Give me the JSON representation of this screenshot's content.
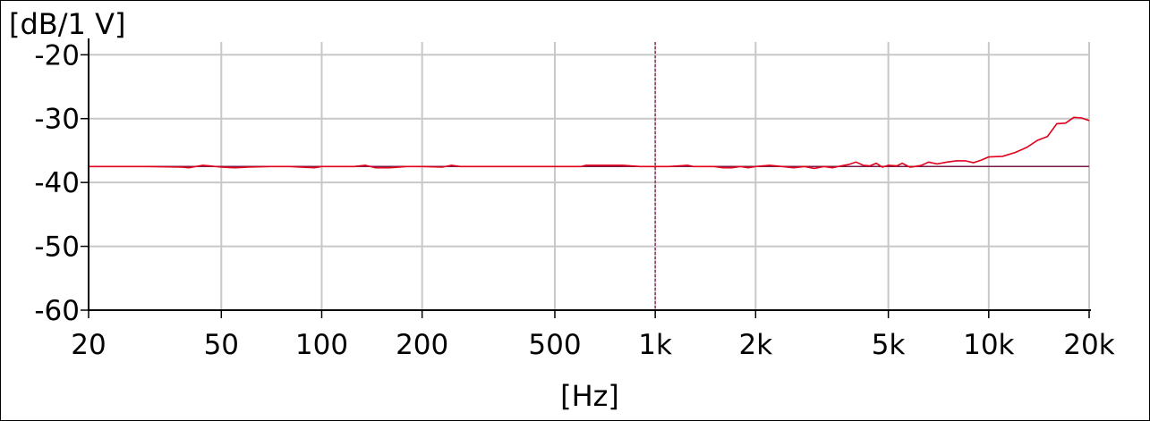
{
  "chart_data": {
    "type": "line",
    "title": "",
    "ylabel": "[dB/1 V]",
    "xlabel": "[Hz]",
    "x_scale": "log",
    "xlim": [
      20,
      20000
    ],
    "ylim": [
      -60,
      -18
    ],
    "grid": true,
    "x_ticks": [
      {
        "value": 20,
        "label": "20"
      },
      {
        "value": 50,
        "label": "50"
      },
      {
        "value": 100,
        "label": "100"
      },
      {
        "value": 200,
        "label": "200"
      },
      {
        "value": 500,
        "label": "500"
      },
      {
        "value": 1000,
        "label": "1k"
      },
      {
        "value": 2000,
        "label": "2k"
      },
      {
        "value": 5000,
        "label": "5k"
      },
      {
        "value": 10000,
        "label": "10k"
      },
      {
        "value": 20000,
        "label": "20k"
      }
    ],
    "y_ticks": [
      {
        "value": -20,
        "label": "-20"
      },
      {
        "value": -30,
        "label": "-30"
      },
      {
        "value": -40,
        "label": "-40"
      },
      {
        "value": -50,
        "label": "-50"
      },
      {
        "value": -60,
        "label": "-60"
      }
    ],
    "reference_level": -37.5,
    "cursor_x": 1000,
    "series": [
      {
        "color": "#e0001b",
        "x": [
          20,
          30,
          38,
          40,
          44,
          46,
          50,
          55,
          60,
          70,
          80,
          95,
          100,
          110,
          125,
          135,
          145,
          160,
          180,
          200,
          230,
          245,
          260,
          300,
          400,
          500,
          600,
          620,
          700,
          800,
          900,
          1000,
          1100,
          1250,
          1300,
          1500,
          1600,
          1700,
          1800,
          1900,
          2000,
          2200,
          2400,
          2600,
          2800,
          3000,
          3200,
          3400,
          3600,
          3800,
          4000,
          4200,
          4400,
          4600,
          4800,
          5000,
          5300,
          5500,
          5800,
          6000,
          6300,
          6600,
          7000,
          7500,
          8000,
          8500,
          9000,
          9500,
          10000,
          11000,
          12000,
          13000,
          14000,
          15000,
          16000,
          17000,
          18000,
          19000,
          20000
        ],
        "y": [
          -37.5,
          -37.5,
          -37.6,
          -37.7,
          -37.3,
          -37.4,
          -37.6,
          -37.7,
          -37.6,
          -37.5,
          -37.5,
          -37.7,
          -37.5,
          -37.5,
          -37.5,
          -37.3,
          -37.7,
          -37.7,
          -37.5,
          -37.5,
          -37.6,
          -37.3,
          -37.5,
          -37.5,
          -37.5,
          -37.5,
          -37.5,
          -37.3,
          -37.3,
          -37.3,
          -37.5,
          -37.5,
          -37.5,
          -37.3,
          -37.5,
          -37.5,
          -37.7,
          -37.7,
          -37.5,
          -37.7,
          -37.5,
          -37.3,
          -37.5,
          -37.7,
          -37.5,
          -37.8,
          -37.5,
          -37.7,
          -37.4,
          -37.2,
          -36.8,
          -37.3,
          -37.4,
          -37.0,
          -37.6,
          -37.3,
          -37.4,
          -37.0,
          -37.6,
          -37.5,
          -37.3,
          -36.8,
          -37.1,
          -36.8,
          -36.6,
          -36.6,
          -36.9,
          -36.5,
          -36.0,
          -35.9,
          -35.3,
          -34.5,
          -33.4,
          -32.8,
          -30.8,
          -30.7,
          -29.8,
          -29.9,
          -30.3
        ]
      }
    ]
  },
  "colors": {
    "grid": "#c8c8c8",
    "axis": "#000000",
    "reference_line": "#7a1a4a",
    "cursor_line": "#7a1a4a"
  }
}
